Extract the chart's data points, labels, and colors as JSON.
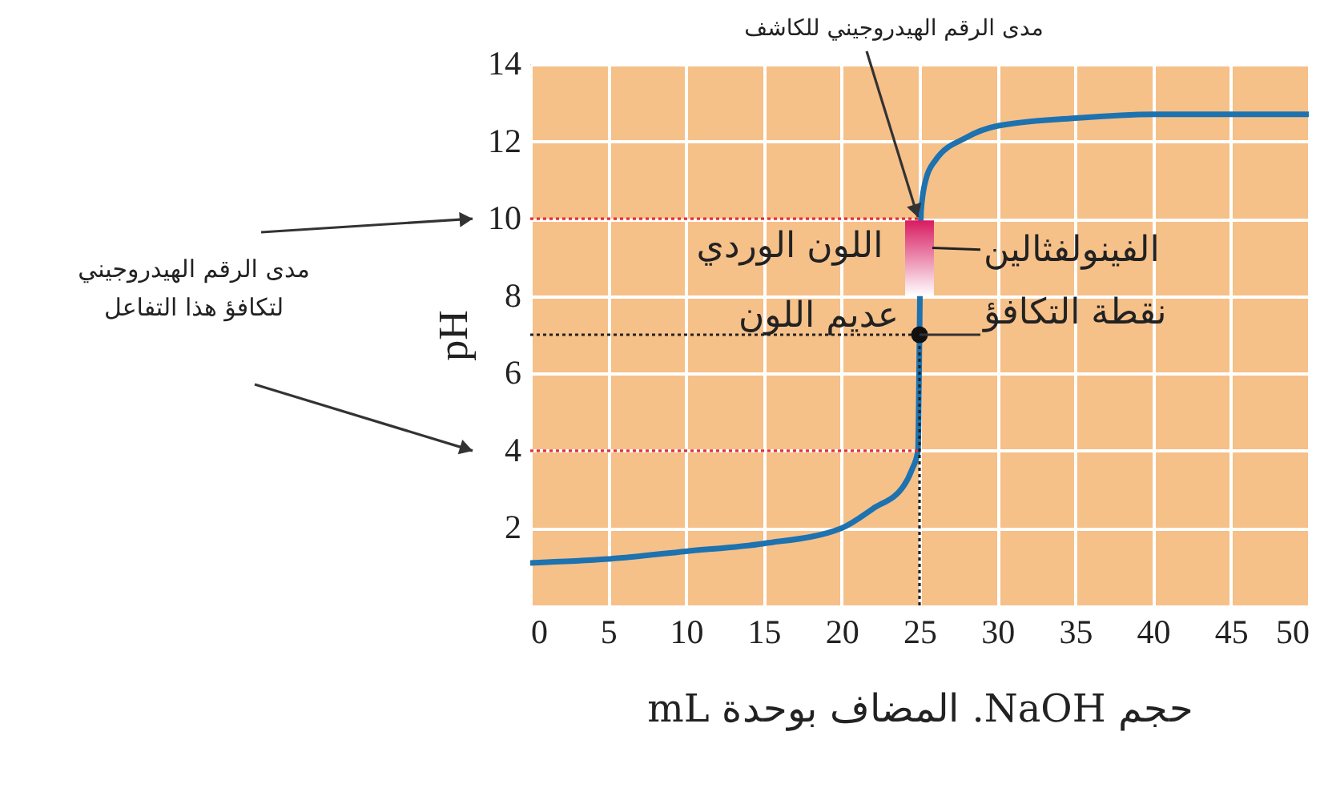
{
  "chart_data": {
    "type": "line",
    "xlabel": "حجم NaOH. المضاف بوحدة mL",
    "ylabel": "pH",
    "x": [
      0,
      5,
      10,
      15,
      20,
      22,
      24,
      24.5,
      24.9,
      25,
      25.1,
      25.4,
      26,
      28,
      30,
      35,
      40,
      45,
      50
    ],
    "series": [
      {
        "color": "#1d72b0",
        "values": [
          1.1,
          1.2,
          1.4,
          1.6,
          2.0,
          2.5,
          3.1,
          3.5,
          4.0,
          7.0,
          10.2,
          11.0,
          11.5,
          12.1,
          12.4,
          12.6,
          12.7,
          12.7,
          12.7
        ]
      },
      {
        "type": "scatter",
        "color": "#111111",
        "x": [
          25
        ],
        "values": [
          7
        ]
      }
    ],
    "xlim": [
      0,
      50
    ],
    "ylim": [
      0,
      14
    ],
    "xticks": [
      0,
      5,
      10,
      15,
      20,
      25,
      30,
      35,
      40,
      45,
      50
    ],
    "yticks": [
      2,
      4,
      6,
      8,
      10,
      12,
      14
    ],
    "grid": true,
    "ref_lines": [
      {
        "axis": "y",
        "value": 10,
        "color": "#e0303a",
        "line_style": "dotted"
      },
      {
        "axis": "y",
        "value": 4,
        "color": "#e0303a",
        "line_style": "dotted"
      },
      {
        "axis": "y",
        "value": 7,
        "color": "#222222",
        "line_style": "dotted"
      },
      {
        "axis": "x",
        "value": 25,
        "color": "#222222",
        "line_style": "dotted"
      }
    ],
    "annotations": [
      {
        "text": "مدى الرقم الهيدروجيني للكاشف",
        "x": 25,
        "y": 10
      },
      {
        "text": "نقطة التكافؤ",
        "x": 25,
        "y": 7
      },
      "الفينولفثالين",
      "اللون الوردي",
      "عديم اللون",
      "مدى الرقم الهيدروجيني\nلتكافؤ هذا التفاعل"
    ]
  }
}
